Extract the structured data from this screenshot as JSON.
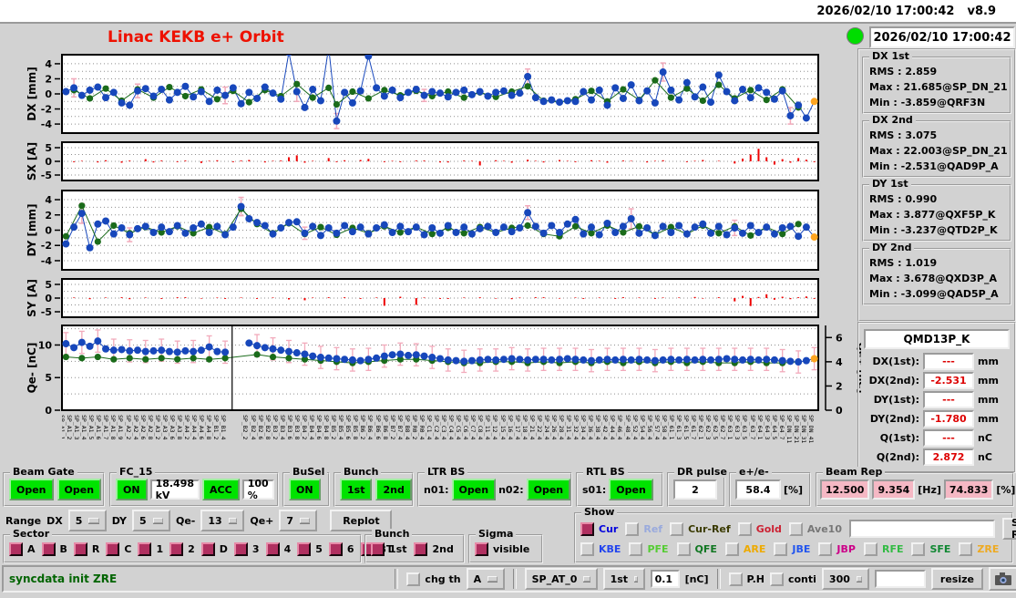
{
  "window": {
    "datetime": "2026/02/10 17:00:42",
    "version": "v8.9"
  },
  "header": {
    "title": "Linac KEKB e+ Orbit",
    "timestamp": "2026/02/10 17:00:42",
    "led_color": "#00dd00"
  },
  "colors": {
    "title_red": "#ee1100",
    "marker_blue": "#1747bb",
    "marker_green": "#1a6b1a",
    "marker_orange": "#ffa520",
    "error_pink": "#f2aabb",
    "bar_red": "#ee0000",
    "green_button": "#00e300",
    "pink_field": "#f5b8c4",
    "check_on": "#b03060",
    "status_green": "#006400"
  },
  "chart_data": {
    "type": "line",
    "title": "Linac KEKB e+ Orbit",
    "plots": {
      "dx": {
        "axis_label": "DX [mm]",
        "ticks": [
          4,
          2,
          0,
          -2,
          -4
        ],
        "range": [
          -5.2,
          5.2
        ],
        "grid": [
          -4,
          -3,
          -2,
          -1,
          0,
          1,
          2,
          3,
          4
        ],
        "kind": "orbit",
        "last_orange": true,
        "blue": "0.3,0.8,-0.2,0.5,0.9,-0.5,0.2,-1.2,-1.5,0.4,0.7,-0.3,0.6,-0.8,0.2,1.0,-0.4,0.3,-1.0,0.5,-0.2,0.8,-1.3,0.2,-0.6,0.9,0.1,-0.7,5.5,0.3,-1.8,0.6,-0.9,6.2,-3.6,0.2,-1.2,0.4,5.0,0.8,-0.3,0.5,-0.5,0.2,0.6,-0.2,0.3,0.1,-0.4,0.2,0.5,-0.1,0.3,-0.3,0.2,0.4,-0.2,0.1,2.3,-0.5,-1.0,-0.8,-1.1,-0.9,-1.0,0.3,-0.8,0.5,-1.5,0.8,-0.6,1.2,-0.9,0.4,-1.2,2.9,0.5,-0.8,1.5,-0.4,0.9,-1.1,2.5,0.3,-0.9,0.6,-0.5,0.8,0.2,-0.7,0.4,-2.9,-1.5,-3.2,-1.0",
        "green_pairs": "1:0.5,3:-0.6,5:0.7,7:-0.9,9:0.6,11:-0.5,13:0.9,15:-0.3,17:0.6,19:-0.7,21:0.4,23:-1.1,25:0.5,27:-0.3,29:1.3,31:-0.5,33:0.8,34:-1.4,36:0.3,38:-0.6,40:0.5,42:-0.2,44:0.4,46:-0.3,48:0.3,50:-0.5,52:0.2,54:-0.4,56:0.3,58:1.0,60:-0.9,62:-1.1,64:-0.7,66:0.4,68:-1.0,70:0.6,72:-0.8,74:1.8,76:-0.5,78:0.7,80:-0.9,82:1.2,84:-0.6,86:0.5,88:-0.8,90:0.6,92:-1.8",
        "err_pairs": "1:1.2,9:0.9,20:1.1,29:1.3,34:1.0,45:0.8,58:1.0,75:1.2,91:1.1"
      },
      "sx": {
        "axis_label": "SX [A]",
        "ticks": [
          5,
          0,
          -5
        ],
        "range": [
          -7,
          7
        ],
        "grid": [
          -5,
          -2.5,
          0,
          2.5,
          5
        ],
        "kind": "bars",
        "values": "0,-0.3,0.2,0,-0.4,0.4,0,-0.5,0.3,0,0.8,-0.4,0.3,0,-0.3,0.3,0,-0.6,0.2,0.4,0,-0.3,0.3,0.5,0,-0.4,0.2,0.3,1.5,2.2,-0.5,0.2,0,1.2,-0.3,0.4,0,0.5,0.9,0,-0.3,0.2,-0.3,0,0.3,0.3,0,-0.4,-0.4,0,0.3,0.2,-1.5,0,0.4,0.2,-0.5,0,0.6,0.2,-0.4,0,0.5,0.2,-0.3,0,0.4,0.2,-0.5,0,0.3,0.2,0,-0.4,0.2,0.4,0,0,-0.3,0.2,0.5,0,0.2,0,-0.8,1.0,2.5,4.6,1.5,-1.2,0.8,-0.5,1.2,0.6,-0.3"
      },
      "dy": {
        "axis_label": "DY [mm]",
        "ticks": [
          4,
          2,
          0,
          -2,
          -4
        ],
        "range": [
          -5.2,
          5.2
        ],
        "grid": [
          -4,
          -3,
          -2,
          -1,
          0,
          1,
          2,
          3,
          4
        ],
        "kind": "orbit",
        "last_orange": true,
        "blue": "-1.8,0.4,2.2,-2.3,0.8,1.2,-0.5,0.3,-0.6,0.2,0.5,-0.3,0.4,-0.2,0.6,-0.4,0.3,0.8,-0.3,0.5,-0.6,0.4,3.1,1.5,1.0,0.6,-0.5,0.3,1.0,1.1,-0.4,0.5,-0.7,0.3,-0.4,0.6,-0.2,0.4,-0.5,0.3,0.7,-0.3,0.5,-0.2,0.4,-0.6,0.3,-0.4,0.6,-0.3,0.4,-0.5,0.2,0.5,-0.3,0.4,-0.2,0.3,2.3,0.5,-0.4,0.6,-0.3,0.8,1.4,-0.5,0.4,-0.6,0.9,-0.3,0.5,1.5,-0.4,0.3,-0.7,0.5,-0.3,0.6,-0.5,0.4,0.8,-0.4,0.5,-0.6,0.3,-0.4,0.6,-0.3,0.4,-0.5,0.3,0.5,-0.8,0.4,-0.9",
        "green_pairs": "0:-0.8,2:3.2,4:-1.5,6:0.6,8:-0.4,10:0.4,12:-0.3,14:0.5,16:-0.4,18:0.4,20:-0.5,22:2.8,24:0.8,26:-0.4,28:0.9,30:-0.5,32:0.4,34:-0.6,36:0.3,38:-0.4,40:0.5,42:-0.3,44:0.4,46:-0.5,48:0.3,50:-0.4,52:0.4,54:-0.3,56:0.3,58:0.6,60:-0.5,62:-0.8,64:0.5,66:-0.4,68:0.6,70:-0.3,72:0.5,74:-0.6,76:0.4,78:-0.5,80:0.6,82:-0.4,84:0.5,86:-0.7,88:0.4,90:-0.5,92:0.8",
        "err_pairs": "2:1.3,8:0.9,22:1.2,30:0.8,58:0.9,71:1.3,84:1.0"
      },
      "sy": {
        "axis_label": "SY [A]",
        "ticks": [
          5,
          0,
          -5
        ],
        "range": [
          -7,
          7
        ],
        "grid": [
          -5,
          -2.5,
          0,
          2.5,
          5
        ],
        "kind": "bars",
        "values": "0,0.2,0,-0.4,0,0.2,0,0.3,-0.4,0,0.2,0,-0.3,0,0.3,0.3,0,-0.2,0,0.2,-0.3,0,0.2,0,-0.3,0,0.2,0,-0.5,0,-0.8,0.2,0,0.3,0,0.3,0,-0.3,0,0.2,-2.8,0,0.5,0,-2.5,0.2,0,-0.3,-0.3,0,0.2,0,0.3,0,-0.2,0,-0.4,0.2,0,0.3,0.3,0,-0.2,0,0.2,-0.3,0,0.2,0,-0.3,0.3,0,0.2,0,-0.3,0.2,0,0.2,0,0.4,-0.2,0,0.3,0,-1.2,0.8,-2.9,0.4,1.4,-0.6,0.5,-0.4,0.3,0.6,-0.3"
      },
      "qe": {
        "axis_label": "Qe- [nC]",
        "right_axis_label": "Qe+ [nC]",
        "ticks": [
          10,
          5,
          0
        ],
        "right_ticks": [
          6,
          4,
          2,
          0
        ],
        "range": [
          0,
          13
        ],
        "right_range": [
          0,
          7
        ],
        "grid": [
          2.5,
          5,
          7.5,
          10,
          12.5
        ],
        "kind": "orbit",
        "last_orange": true,
        "vline": 0.225,
        "err": 1.7,
        "err_step": 2,
        "blue": "10.2,9.6,10.4,9.8,10.6,9.4,9.2,9.3,9.1,9.2,9.0,9.1,9.2,9.0,8.9,9.1,9.0,9.2,9.7,9.0,8.9,,,10.3,9.9,9.6,9.4,9.2,9.0,8.8,8.6,8.3,8.1,8.0,7.9,7.8,7.7,7.6,7.8,8.0,8.3,8.5,8.6,8.4,8.5,8.3,8.1,7.9,7.7,7.6,7.5,7.6,7.7,7.8,7.7,7.8,7.9,7.8,7.7,7.8,7.8,7.7,7.8,7.9,7.8,7.7,7.6,7.7,7.8,7.7,7.8,7.7,7.8,7.7,7.6,7.7,7.8,7.7,7.8,7.7,7.8,7.7,7.8,7.9,7.8,7.7,7.8,7.7,7.8,7.7,7.6,7.5,7.4,7.6,7.9",
        "green_pairs": "0:4.4,2:4.3,4:4.4,6:4.2,8:4.3,10:4.2,12:4.3,14:4.2,16:4.3,18:4.2,20:4.3,24:4.6,26:4.4,28:4.3,30:4.2,32:4.1,34:4.0,36:3.9,38:4.0,40:4.1,42:4.2,44:4.2,46:4.1,48:4.0,50:3.9,52:3.9,54:4.0,56:4.0,58:3.9,60:4.0,62:3.9,64:4.0,66:3.9,68:4.0,70:3.9,72:4.0,74:3.9,76:4.0,78:3.9,80:4.0,82:3.9,84:3.9,86:4.0,88:3.9,90:3.9,92:4.0",
        "green_on_right_axis": true
      }
    },
    "xlabels": [
      "SP_A1_1",
      "SP_A1_2",
      "SP_A1_3",
      "SP_A1_4",
      "SP_A1_5",
      "SP_A1_6",
      "SP_A1_7",
      "SP_A1_8",
      "SP_A1_9",
      "SP_A2_2",
      "SP_A2_4",
      "SP_A2_6",
      "SP_A2_8",
      "SP_A3_2",
      "SP_A3_4",
      "SP_A3_6",
      "SP_A3_8",
      "SP_A4_2",
      "SP_A4_4",
      "SP_A4_6",
      "SP_A4_8",
      "SP_B1_2",
      "SP_B1_4",
      "",
      "",
      "SP_B2_2",
      "SP_B2_4",
      "SP_B2_6",
      "SP_B2_8",
      "SP_B3_2",
      "SP_B3_4",
      "SP_B3_6",
      "SP_B3_8",
      "SP_B4_2",
      "SP_B4_4",
      "SP_B4_6",
      "SP_B4_8",
      "SP_B5_2",
      "SP_B5_4",
      "SP_B5_6",
      "SP_B5_8",
      "SP_B6_2",
      "SP_B6_4",
      "SP_B6_6",
      "SP_B6_8",
      "SP_B7_2",
      "SP_B7_4",
      "SP_B8_4",
      "SP_R0_2",
      "SP_R0_4",
      "SP_C1_4",
      "SP_C2_4",
      "SP_C3_4",
      "SP_C4_4",
      "SP_C5_4",
      "SP_C6_4",
      "SP_C7_4",
      "SP_C8_4",
      "SP_11_4",
      "SP_12_4",
      "SP_15_4",
      "SP_16_4",
      "SP_17_4",
      "SP_18_4",
      "SP_21_4",
      "SP_22_4",
      "SP_24_4",
      "SP_26_4",
      "SP_28_4",
      "SP_31_4",
      "SP_32_4",
      "SP_34_4",
      "SP_36_4",
      "SP_38_4",
      "SP_42_4",
      "SP_44_4",
      "SP_46_4",
      "SP_48_4",
      "SP_52_4",
      "SP_54_4",
      "SP_56_4",
      "SP_57_4",
      "SP_58_4",
      "SP_61_1",
      "SP_61_3",
      "SP_61_5",
      "SP_61_7",
      "SP_62_1",
      "SP_62_3",
      "SP_62_5",
      "SP_62_7",
      "SP_63_1",
      "SP_63_3",
      "SP_63_5",
      "SP_63_7",
      "SP_64_1",
      "SP_64_3",
      "SP_64_5",
      "SP_64_7",
      "SP_DN_11",
      "SP_DN_21",
      "SP_DN_31",
      "SP_DN_41"
    ]
  },
  "stats": {
    "groups": [
      {
        "title": "DX 1st",
        "lines": [
          "RMS :  2.859",
          "Max :  21.685@SP_DN_21",
          "Min :  -3.859@QRF3N"
        ]
      },
      {
        "title": "DX 2nd",
        "lines": [
          "RMS :  3.075",
          "Max :  22.003@SP_DN_21",
          "Min :  -2.531@QAD9P_A"
        ]
      },
      {
        "title": "DY 1st",
        "lines": [
          "RMS :  0.990",
          "Max :  3.877@QXF5P_K",
          "Min :  -3.237@QTD2P_K"
        ]
      },
      {
        "title": "DY 2nd",
        "lines": [
          "RMS :  1.019",
          "Max :  3.678@QXD3P_A",
          "Min :  -3.099@QAD5P_A"
        ]
      }
    ]
  },
  "meter": {
    "title": "QMD13P_K",
    "rows": [
      {
        "label": "DX(1st):",
        "value": "---",
        "unit": "mm"
      },
      {
        "label": "DX(2nd):",
        "value": "-2.531",
        "unit": "mm"
      },
      {
        "label": "DY(1st):",
        "value": "---",
        "unit": "mm"
      },
      {
        "label": "DY(2nd):",
        "value": "-1.780",
        "unit": "mm"
      },
      {
        "label": "Q(1st):",
        "value": "---",
        "unit": "nC"
      },
      {
        "label": "Q(2nd):",
        "value": "2.872",
        "unit": "nC"
      }
    ]
  },
  "row1": {
    "beam_gate": {
      "title": "Beam Gate",
      "btn1": "Open",
      "btn2": "Open"
    },
    "fc15": {
      "title": "FC_15",
      "on": "ON",
      "kv": "18.498 kV",
      "acc": "ACC",
      "pct": "100 %"
    },
    "busel": {
      "title": "BuSel",
      "on": "ON"
    },
    "bunch": {
      "title": "Bunch",
      "b1": "1st",
      "b2": "2nd"
    },
    "ltr": {
      "title": "LTR BS",
      "n01_label": "n01:",
      "n01": "Open",
      "n02_label": "n02:",
      "n02": "Open"
    },
    "rtl": {
      "title": "RTL BS",
      "s01_label": "s01:",
      "s01": "Open"
    },
    "dr": {
      "title": "DR pulse",
      "value": "2"
    },
    "ratio": {
      "title": "e+/e-",
      "value": "58.4",
      "unit": "[%]"
    },
    "beam_rep": {
      "title": "Beam Rep",
      "v1": "12.500",
      "v2": "9.354",
      "hz": "[Hz]",
      "v3": "74.833",
      "pct": "[%]"
    }
  },
  "row2": {
    "range_label": "Range",
    "dx_label": "DX",
    "dx": "5",
    "dy_label": "DY",
    "dy": "5",
    "qem_label": "Qe-",
    "qem": "13",
    "qep_label": "Qe+",
    "qep": "7",
    "replot": "Replot"
  },
  "sector": {
    "title": "Sector",
    "items": [
      "A",
      "B",
      "R",
      "C",
      "1",
      "2",
      "D",
      "3",
      "4",
      "5",
      "6",
      "BT"
    ]
  },
  "bunch2": {
    "title": "Bunch",
    "items": [
      "1st",
      "2nd"
    ]
  },
  "sigma": {
    "title": "Sigma",
    "items": [
      "visible"
    ]
  },
  "show": {
    "title": "Show",
    "row1": [
      {
        "label": "Cur",
        "color": "#0000dd",
        "checked": true
      },
      {
        "label": "Ref",
        "color": "#99aadd",
        "checked": false
      },
      {
        "label": "Cur-Ref",
        "color": "#3a3a00",
        "checked": false
      },
      {
        "label": "Gold",
        "color": "#cc2233",
        "checked": false
      },
      {
        "label": "Ave10",
        "color": "#777777",
        "checked": false
      }
    ],
    "ref_input": "",
    "set_ref": "Set Ref",
    "row2": [
      {
        "label": "KBE",
        "color": "#2244ee",
        "checked": false
      },
      {
        "label": "PFE",
        "color": "#55cc33",
        "checked": false
      },
      {
        "label": "QFE",
        "color": "#117722",
        "checked": false
      },
      {
        "label": "ARE",
        "color": "#eeaa00",
        "checked": false
      },
      {
        "label": "JBE",
        "color": "#2255ee",
        "checked": false
      },
      {
        "label": "JBP",
        "color": "#cc0088",
        "checked": false
      },
      {
        "label": "RFE",
        "color": "#33bb44",
        "checked": false
      },
      {
        "label": "SFE",
        "color": "#118833",
        "checked": false
      },
      {
        "label": "ZRE",
        "color": "#eeaa22",
        "checked": false
      }
    ]
  },
  "statusbar": {
    "message": "syncdata init ZRE",
    "chg_th": "chg th",
    "dd_a": "A",
    "dd_sp": "SP_AT_0",
    "dd_1st": "1st",
    "threshold": "0.1",
    "nc": "[nC]",
    "ph": "P.H",
    "conti": "conti",
    "dd_300": "300",
    "input2": "",
    "resize": "resize"
  }
}
